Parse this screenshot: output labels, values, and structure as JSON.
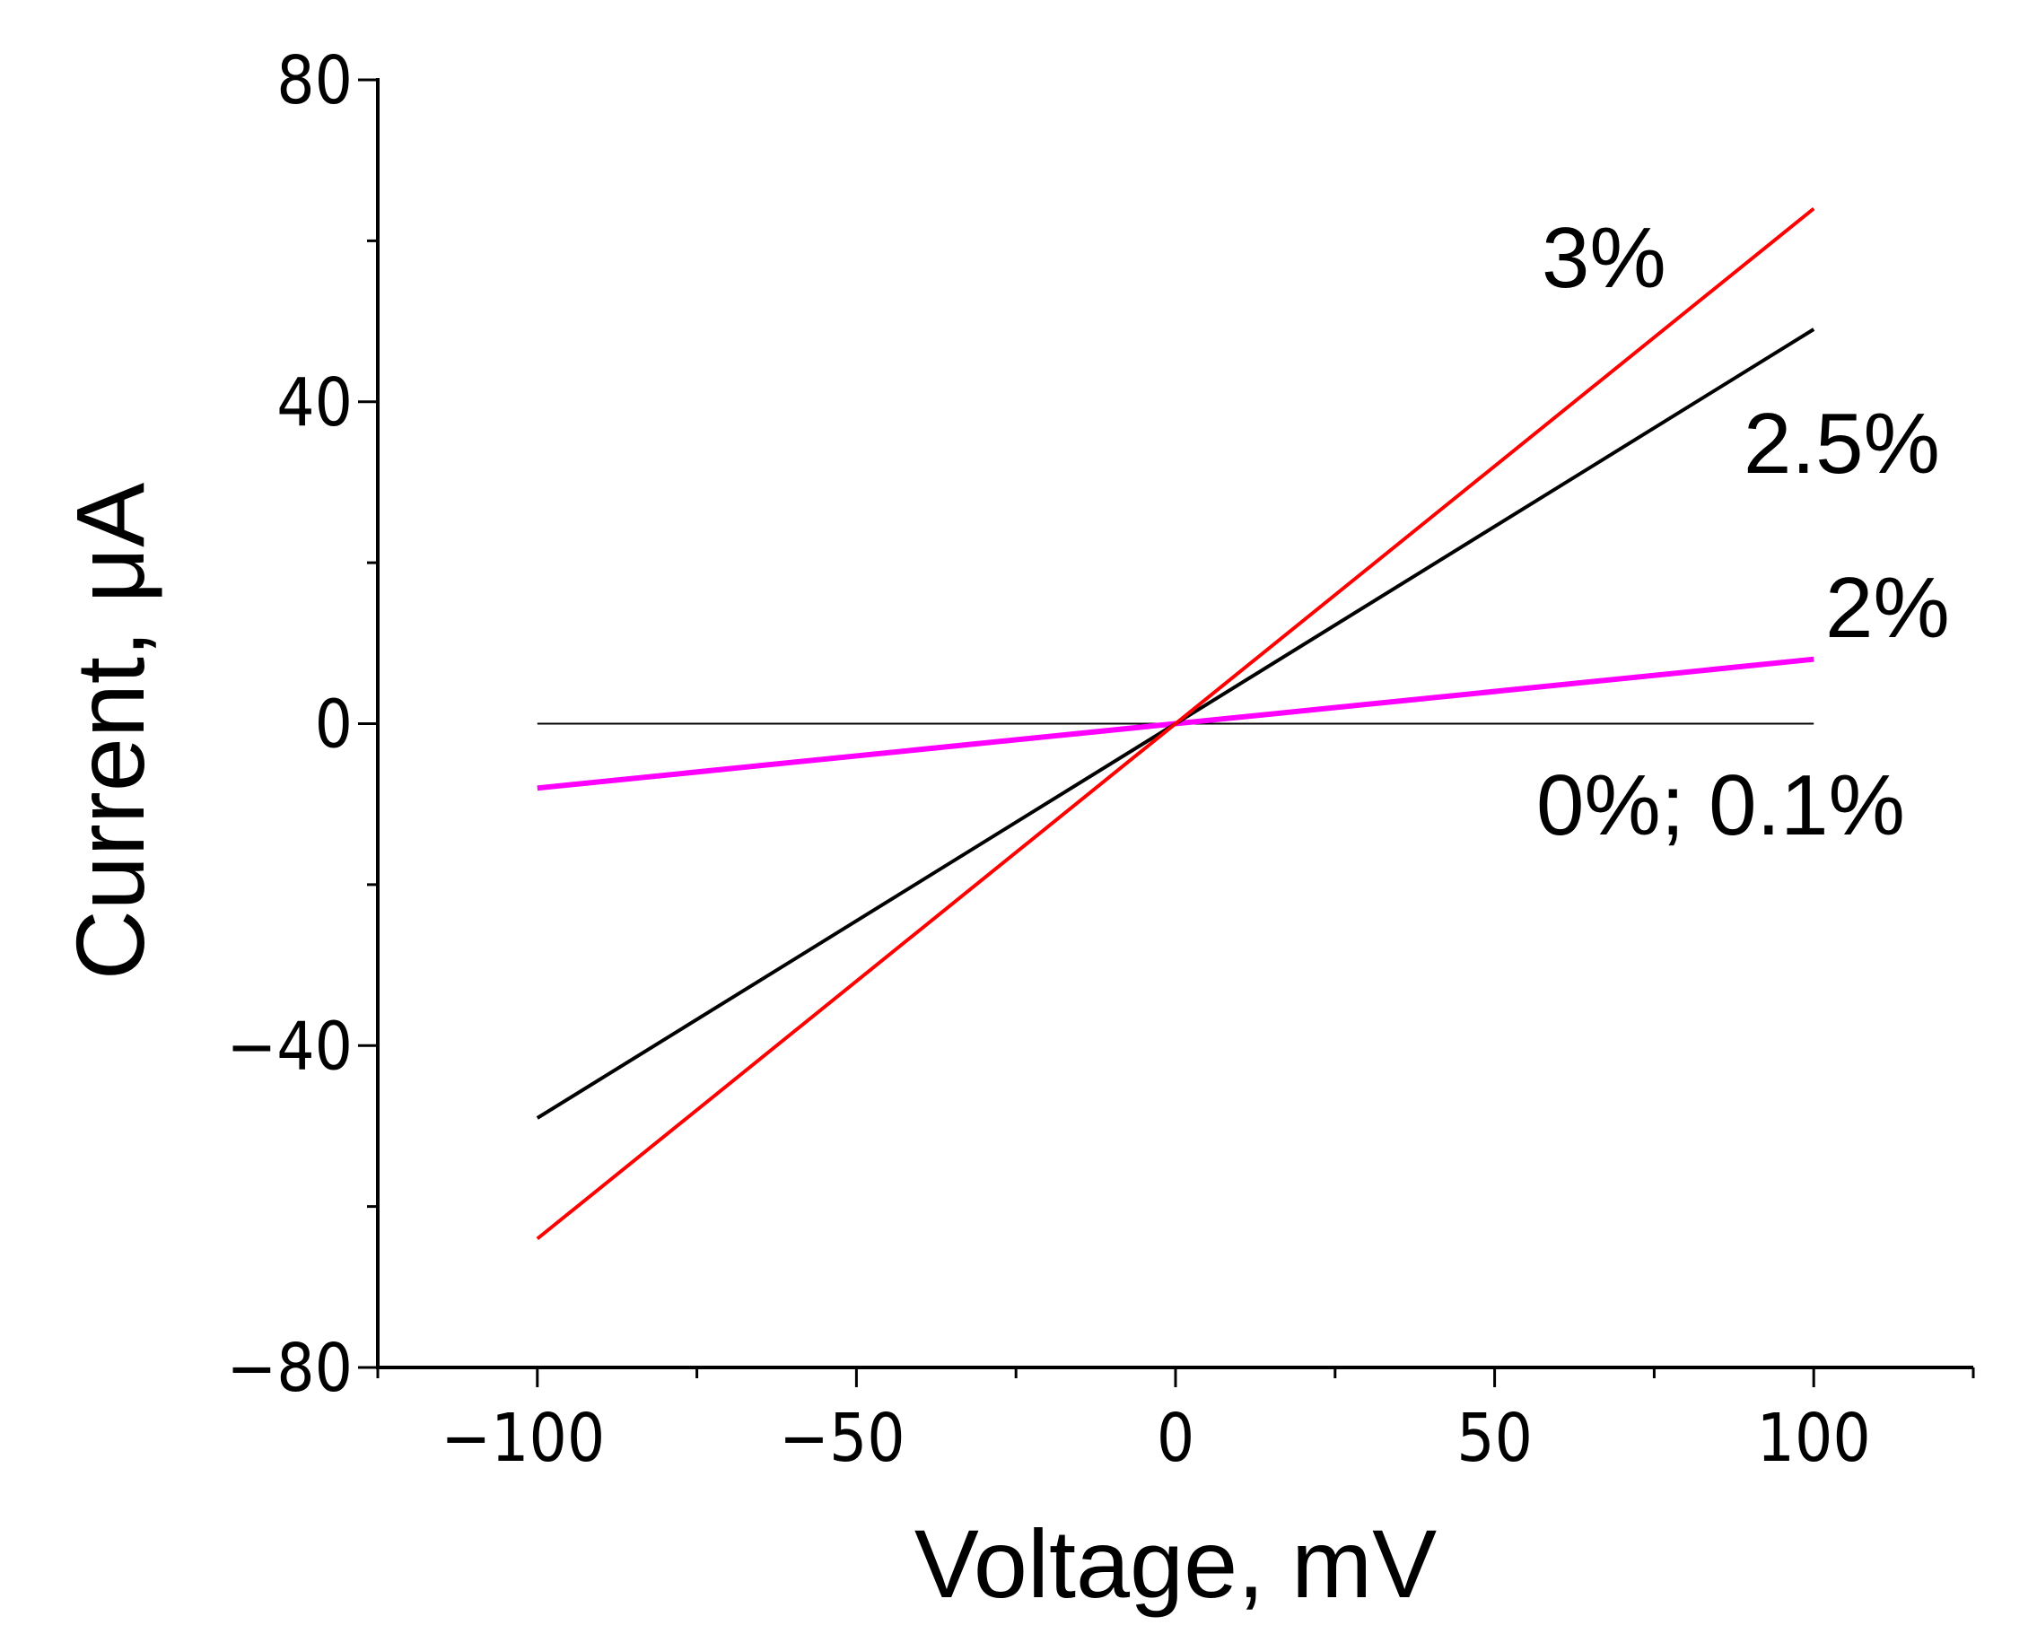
{
  "chart_data": {
    "type": "line",
    "title": "",
    "xlabel": "Voltage, mV",
    "ylabel": "Current, μA",
    "xlim": [
      -125,
      125
    ],
    "ylim": [
      -80,
      80
    ],
    "xticks": [
      -100,
      -50,
      0,
      50,
      100
    ],
    "xtick_labels": [
      "−100",
      "−50",
      "0",
      "50",
      "100"
    ],
    "xminor": [
      -125,
      -75,
      -25,
      25,
      75,
      125
    ],
    "yticks": [
      -80,
      -40,
      0,
      40,
      80
    ],
    "ytick_labels": [
      "−80",
      "−40",
      "0",
      "40",
      "80"
    ],
    "yminor": [
      -60,
      -20,
      20,
      60
    ],
    "grid": false,
    "series": [
      {
        "name": "0%; 0.1%",
        "label": "0%; 0.1%",
        "color": "#000000",
        "width": 2,
        "x": [
          -100,
          100
        ],
        "y": [
          0,
          0
        ]
      },
      {
        "name": "2%",
        "label": "2%",
        "color": "#ff00ff",
        "width": 6,
        "x": [
          -100,
          100
        ],
        "y": [
          -8,
          8
        ]
      },
      {
        "name": "2.5%",
        "label": "2.5%",
        "color": "#000000",
        "width": 4,
        "x": [
          -100,
          100
        ],
        "y": [
          -49,
          49
        ]
      },
      {
        "name": "3%",
        "label": "3%",
        "color": "#ff0000",
        "width": 4,
        "x": [
          -100,
          100
        ],
        "y": [
          -64,
          64
        ]
      }
    ]
  }
}
